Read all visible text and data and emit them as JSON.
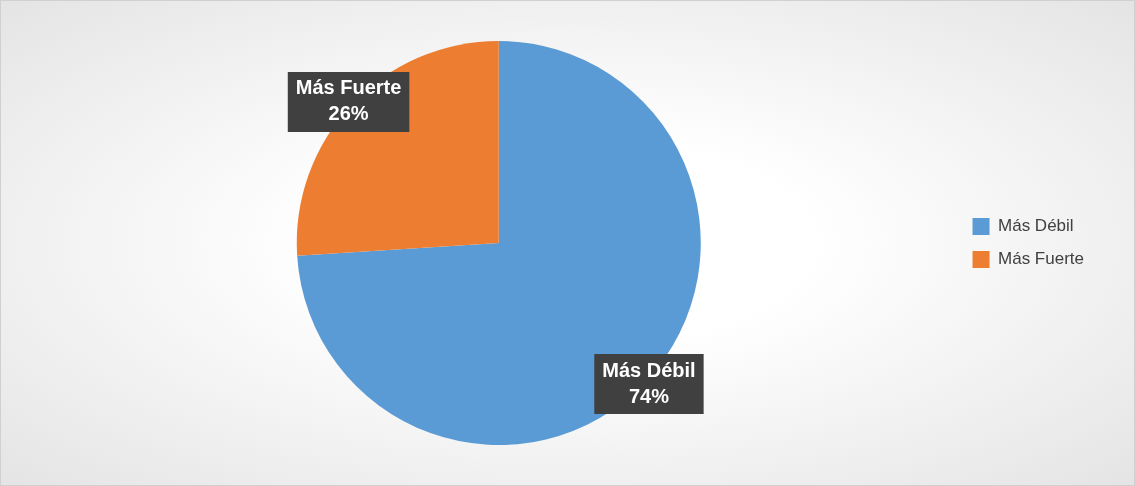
{
  "chart_data": {
    "type": "pie",
    "categories": [
      "Más Débil",
      "Más Fuerte"
    ],
    "values": [
      74,
      26
    ],
    "colors": [
      "#5b9bd5",
      "#ed7d31"
    ],
    "value_labels": [
      "74%",
      "26%"
    ],
    "legend": "right"
  }
}
